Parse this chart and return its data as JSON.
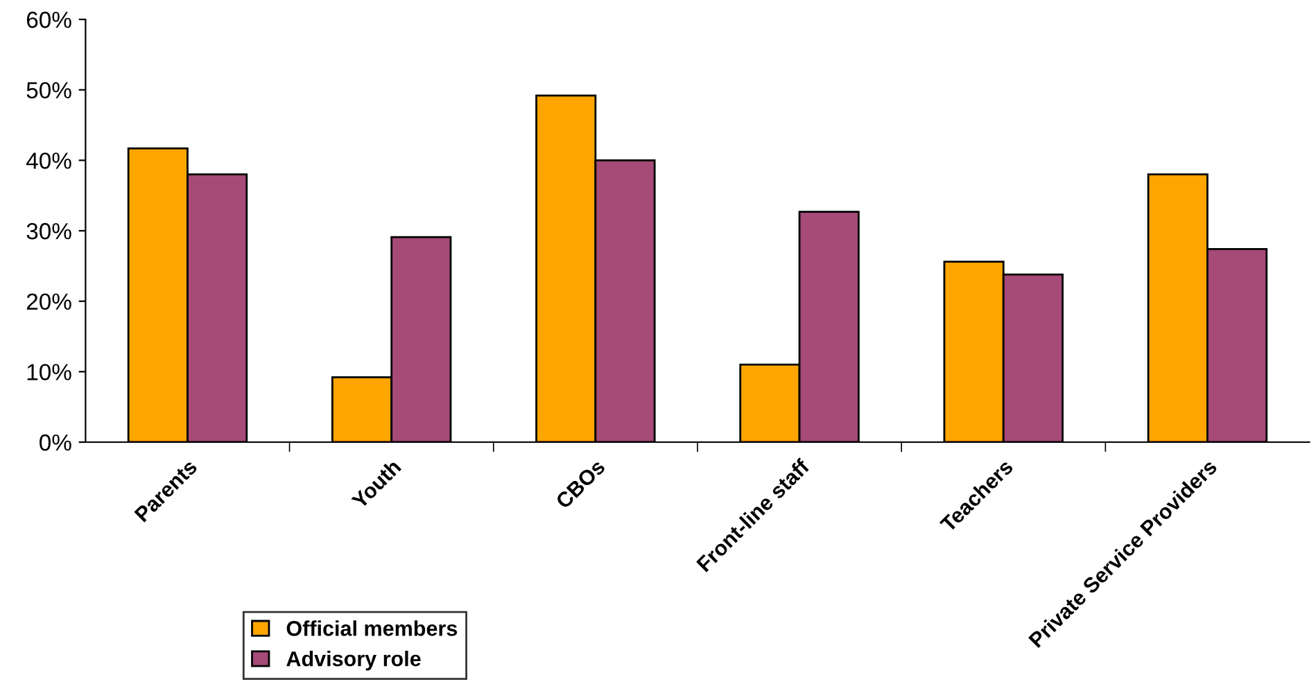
{
  "chart_data": {
    "type": "bar",
    "categories": [
      "Parents",
      "Youth",
      "CBOs",
      "Front-line staff",
      "Teachers",
      "Private Service Providers"
    ],
    "series": [
      {
        "name": "Official members",
        "color": "#ffa500",
        "values": [
          41.7,
          9.2,
          49.2,
          11.0,
          25.6,
          38.0
        ]
      },
      {
        "name": "Advisory role",
        "color": "#a64a78",
        "values": [
          38.0,
          29.1,
          40.0,
          32.7,
          23.8,
          27.4
        ]
      }
    ],
    "ylim": [
      0,
      60
    ],
    "yticks": [
      {
        "value": 0,
        "label": "0%"
      },
      {
        "value": 10,
        "label": "10%"
      },
      {
        "value": 20,
        "label": "20%"
      },
      {
        "value": 30,
        "label": "30%"
      },
      {
        "value": 40,
        "label": "40%"
      },
      {
        "value": 50,
        "label": "50%"
      },
      {
        "value": 60,
        "label": "60%"
      }
    ],
    "grid": false,
    "legend": "bottom left"
  }
}
